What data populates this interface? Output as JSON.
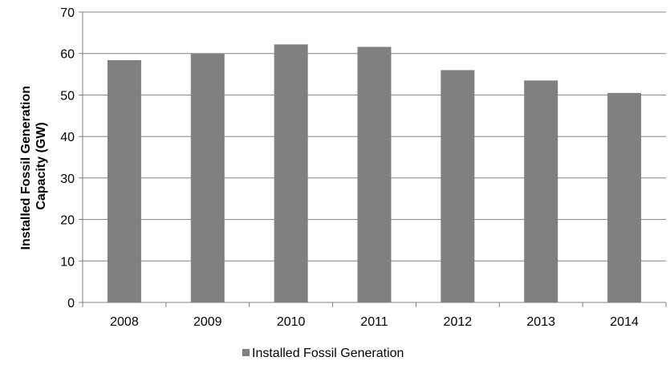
{
  "chart_data": {
    "type": "bar",
    "title": "",
    "xlabel": "",
    "ylabel": "Installed Fossil Generation Capacity (GW)",
    "ylabel_lines": [
      "Installed Fossil Generation",
      "Capacity (GW)"
    ],
    "categories": [
      "2008",
      "2009",
      "2010",
      "2011",
      "2012",
      "2013",
      "2014"
    ],
    "series": [
      {
        "name": "Installed Fossil Generation",
        "values": [
          58.4,
          60.0,
          62.2,
          61.6,
          56.0,
          53.5,
          50.5
        ],
        "color": "#808080"
      }
    ],
    "ylim": [
      0,
      70
    ],
    "yticks": [
      0,
      10,
      20,
      30,
      40,
      50,
      60,
      70
    ],
    "grid": "horizontal",
    "legend_position": "bottom-center",
    "colors": {
      "bar": "#808080",
      "gridline": "#808080",
      "axis": "#808080"
    }
  }
}
